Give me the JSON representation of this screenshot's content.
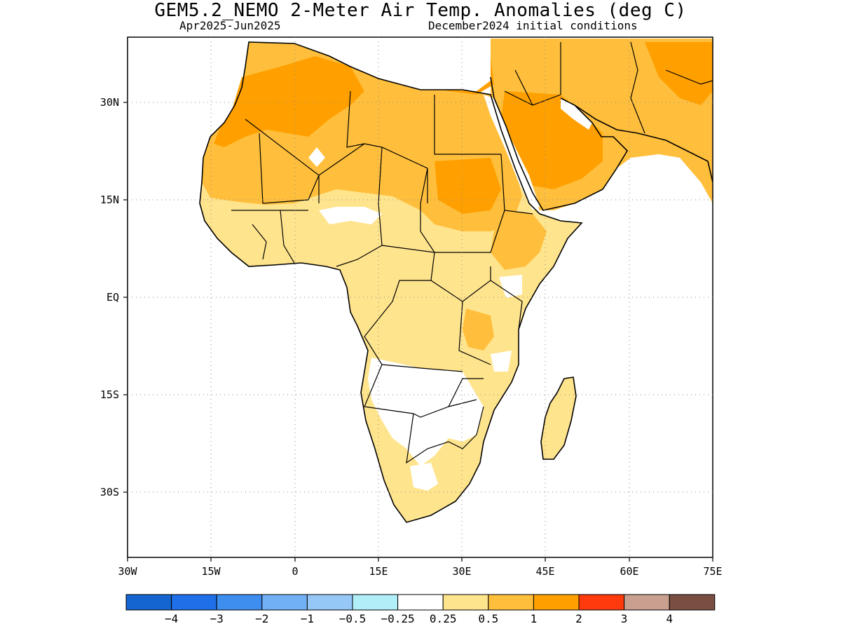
{
  "title": "GEM5.2_NEMO 2-Meter Air Temp. Anomalies (deg C)",
  "subtitle_left": "Apr2025-Jun2025",
  "subtitle_right": "December2024 initial conditions",
  "map": {
    "region": "Africa and Middle East",
    "lon_range": [
      -30,
      75
    ],
    "lat_range": [
      -37,
      33
    ],
    "lat_ticks": [
      "30N",
      "15N",
      "EQ",
      "15S",
      "30S"
    ],
    "lon_ticks": [
      "30W",
      "15W",
      "0",
      "15E",
      "30E",
      "45E",
      "60E",
      "75E"
    ],
    "grid": "dotted"
  },
  "colorbar": {
    "colors": [
      "#1565d0",
      "#1e6fe8",
      "#3e8ef0",
      "#72b0f5",
      "#96c8f7",
      "#b0eef8",
      "#ffffff",
      "#ffe48e",
      "#ffbf3c",
      "#ffa000",
      "#ff3a0c",
      "#c9a090",
      "#7a4e40"
    ],
    "labels": [
      "−4",
      "−3",
      "−2",
      "−1",
      "−0.5",
      "−0.25",
      "0.25",
      "0.5",
      "1",
      "2",
      "3",
      "4"
    ]
  },
  "legend_colors": {
    "light_warm": "#ffe48e",
    "medium_warm": "#ffbf3c",
    "strong_warm": "#ffa000",
    "neutral": "#ffffff"
  }
}
